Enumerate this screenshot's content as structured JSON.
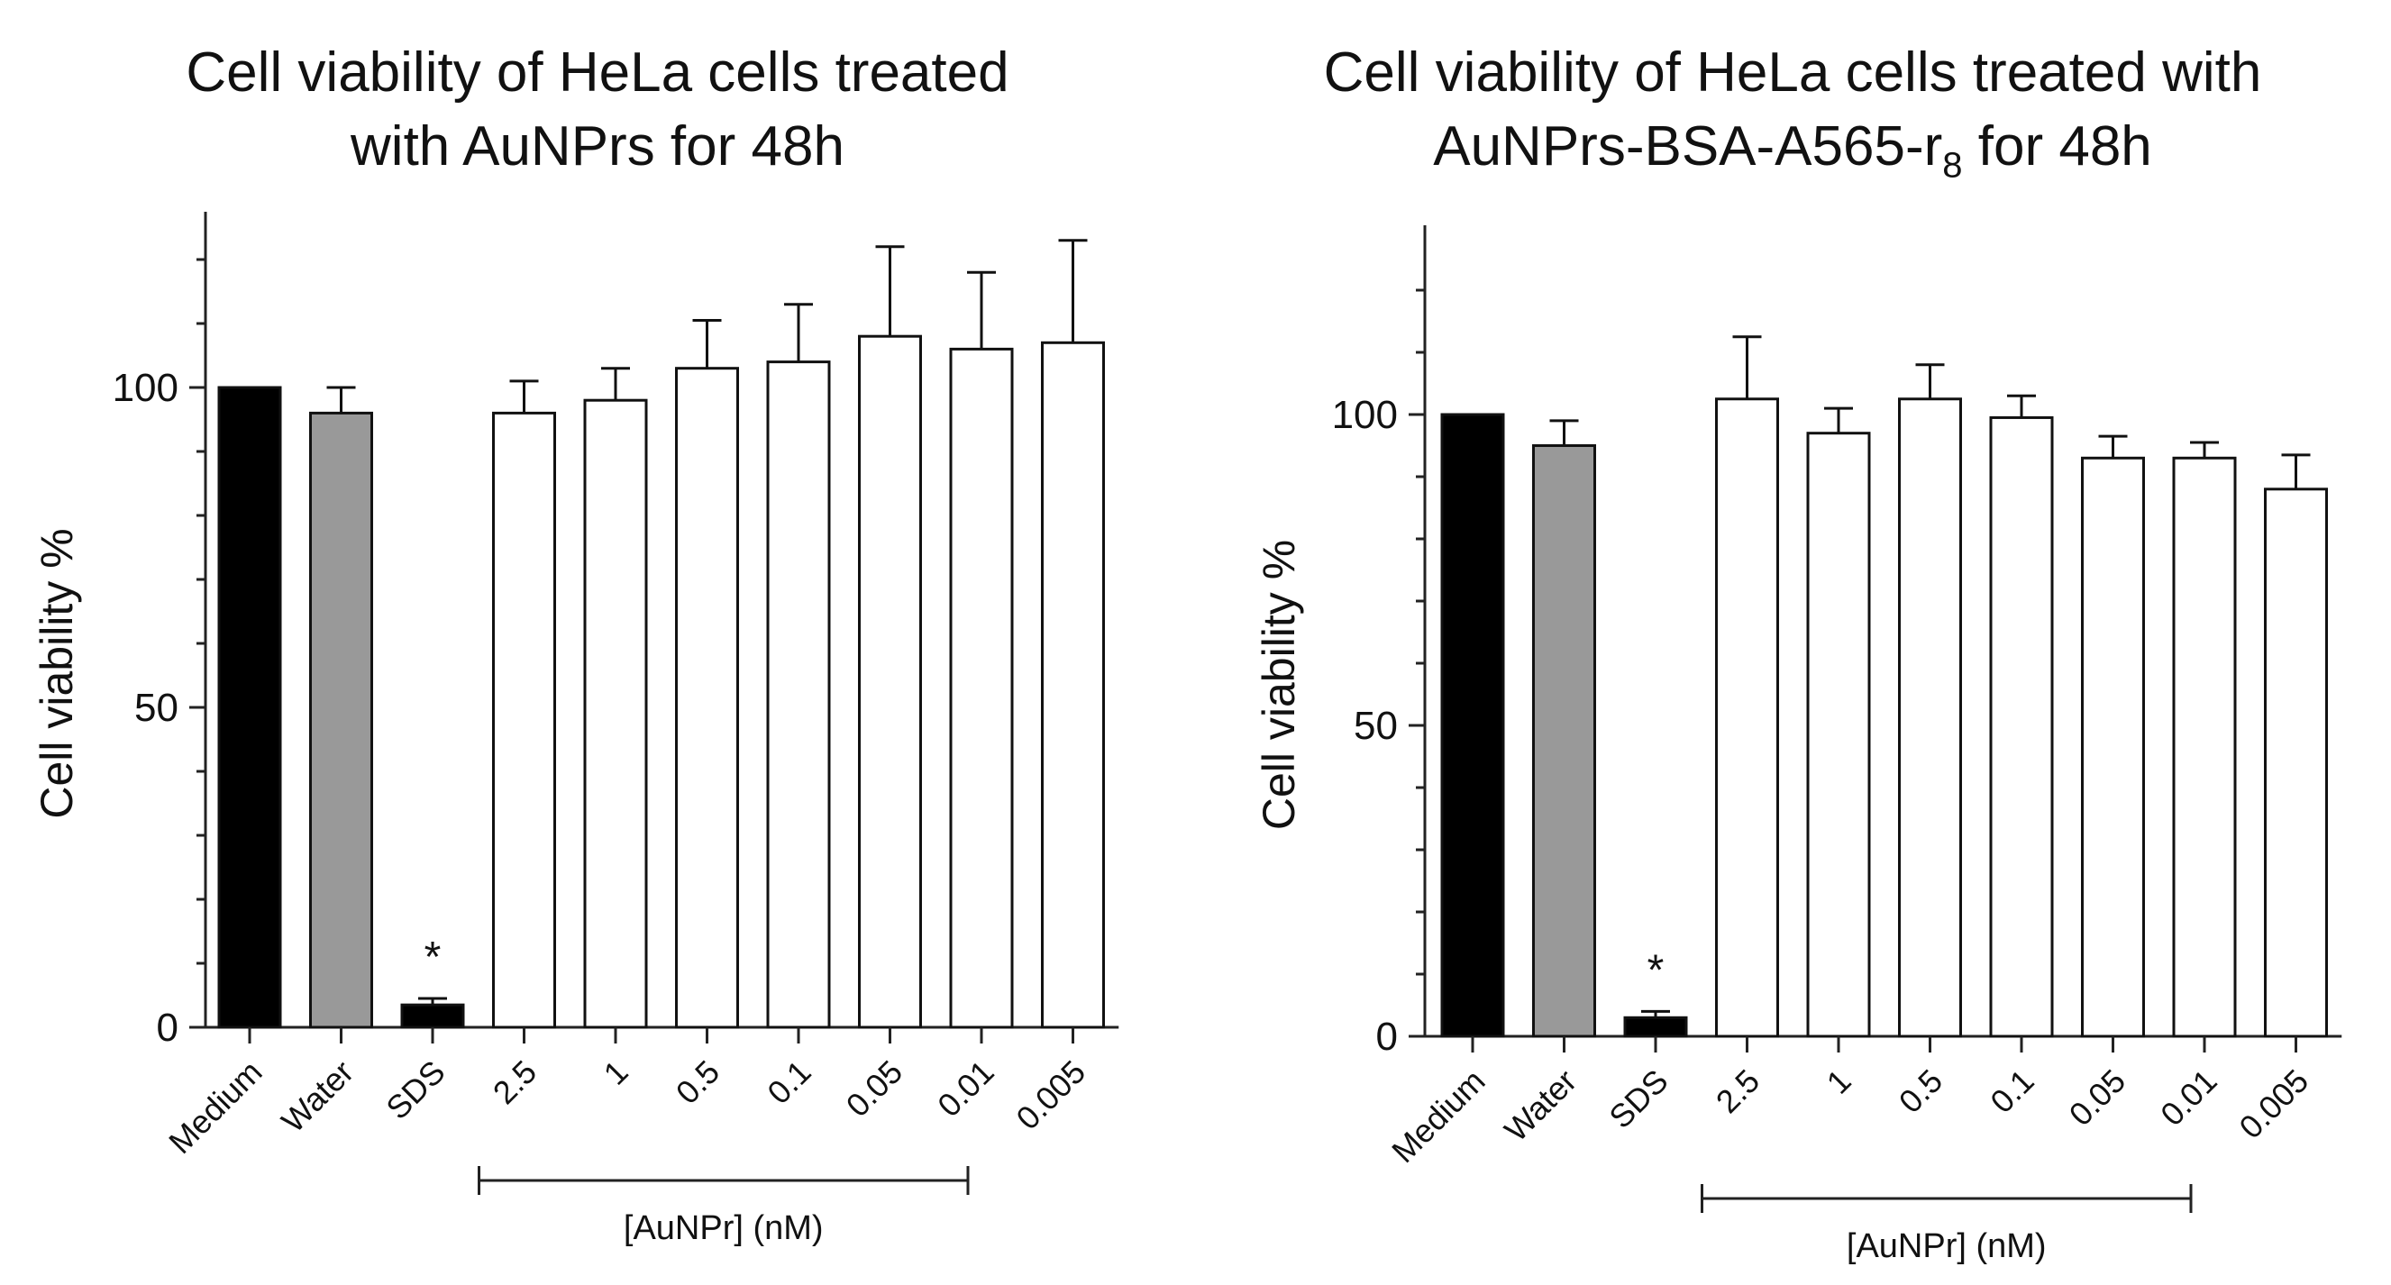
{
  "chart_data": [
    {
      "type": "bar",
      "title_lines": [
        "Cell viability of HeLa cells treated",
        "with AuNPrs for 48h"
      ],
      "ylabel": "Cell viability %",
      "ylim": [
        0,
        125
      ],
      "yticks": [
        0,
        50,
        100
      ],
      "categories": [
        "Medium",
        "Water",
        "SDS",
        "2.5",
        "1",
        "0.5",
        "0.1",
        "0.05",
        "0.01",
        "0.005"
      ],
      "values": [
        100,
        96,
        3.5,
        96,
        98,
        103,
        104,
        108,
        106,
        107
      ],
      "errors": [
        0,
        4,
        1,
        5,
        5,
        7.5,
        9,
        14,
        12,
        16
      ],
      "colors": [
        "#000000",
        "#999999",
        "#000000",
        "#ffffff",
        "#ffffff",
        "#ffffff",
        "#ffffff",
        "#ffffff",
        "#ffffff",
        "#ffffff"
      ],
      "annotations": [
        {
          "category": "SDS",
          "text": "*"
        }
      ],
      "group_bracket": {
        "from": "2.5",
        "to": "0.01",
        "label": "[AuNPr] (nM)"
      }
    },
    {
      "type": "bar",
      "title_lines": [
        "Cell viability of HeLa cells treated with",
        "AuNPrs-BSA-A565-r"
      ],
      "title_subscript": "8",
      "title_suffix": " for 48h",
      "ylabel": "Cell viability %",
      "ylim": [
        0,
        125
      ],
      "yticks": [
        0,
        50,
        100
      ],
      "categories": [
        "Medium",
        "Water",
        "SDS",
        "2.5",
        "1",
        "0.5",
        "0.1",
        "0.05",
        "0.01",
        "0.005"
      ],
      "values": [
        100,
        95,
        3,
        102.5,
        97,
        102.5,
        99.5,
        93,
        93,
        88
      ],
      "errors": [
        0,
        4,
        1,
        10,
        4,
        5.5,
        3.5,
        3.5,
        2.5,
        5.5
      ],
      "colors": [
        "#000000",
        "#999999",
        "#000000",
        "#ffffff",
        "#ffffff",
        "#ffffff",
        "#ffffff",
        "#ffffff",
        "#ffffff",
        "#ffffff"
      ],
      "annotations": [
        {
          "category": "SDS",
          "text": "*"
        }
      ],
      "group_bracket": {
        "from": "2.5",
        "to": "0.01",
        "label": "[AuNPr] (nM)"
      }
    }
  ]
}
